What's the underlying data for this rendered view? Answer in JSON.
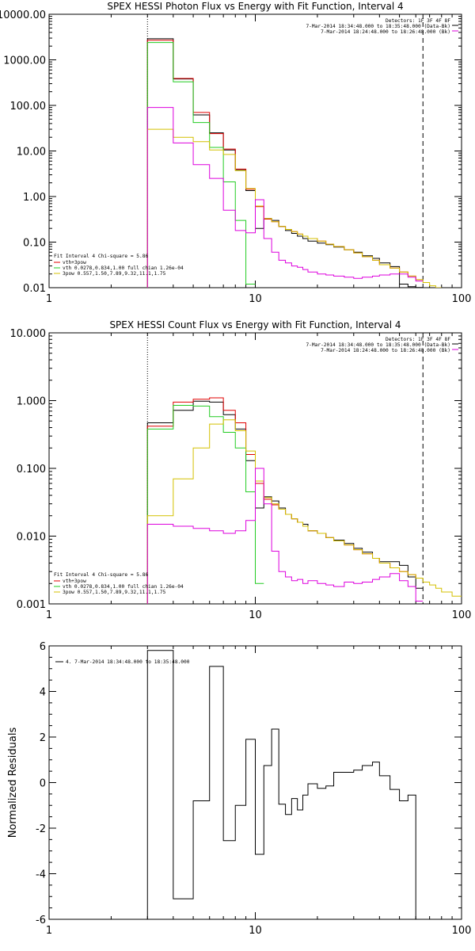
{
  "chart_data": [
    {
      "type": "line",
      "title": "SPEX HESSI Photon Flux vs Energy with Fit Function, Interval 4",
      "xscale": "log",
      "yscale": "log",
      "xlim": [
        1,
        100
      ],
      "ylim": [
        0.01,
        10000
      ],
      "xticks": [
        {
          "v": 1,
          "label": "1"
        },
        {
          "v": 10,
          "label": "10"
        },
        {
          "v": 100,
          "label": "100"
        }
      ],
      "yticks": [
        {
          "v": 0.01,
          "label": "0.01"
        },
        {
          "v": 0.1,
          "label": "0.10"
        },
        {
          "v": 1,
          "label": "1.00"
        },
        {
          "v": 10,
          "label": "10.00"
        },
        {
          "v": 100,
          "label": "100.00"
        },
        {
          "v": 1000,
          "label": "1000.00"
        },
        {
          "v": 10000,
          "label": "10000.00"
        }
      ],
      "vlines": [
        {
          "x": 3,
          "style": "dotted"
        },
        {
          "x": 65,
          "style": "dashed"
        }
      ],
      "header_lines": [
        "Detectors: 1F 3F 4F 8F",
        "7-Mar-2014 18:34:48.000 to 18:35:48.000 (Data-Bk)",
        "7-Mar-2014 18:24:48.000 to 18:26:48.000 (Bk)"
      ],
      "fit_label": "Fit Interval 4   Chi-square = 5.86",
      "legend": [
        "vth+3pow",
        "vth 0.0278,0.834,1.00  full chian 1.26e-04",
        "3pow 0.557,1.50,7.89,9.32,11.1,1.75"
      ],
      "series": [
        {
          "name": "Data-Bk",
          "color": "#000000",
          "edges": [
            3,
            4,
            5,
            6,
            7,
            8,
            9,
            10,
            11,
            12,
            13,
            14,
            15,
            16,
            17,
            18,
            20,
            22,
            24,
            27,
            30,
            33,
            37,
            40,
            45,
            50,
            55,
            60,
            65
          ],
          "values": [
            2900,
            380,
            62,
            25,
            10.5,
            3.9,
            1.35,
            0.2,
            0.33,
            0.3,
            0.22,
            0.18,
            0.155,
            0.135,
            0.12,
            0.105,
            0.095,
            0.088,
            0.078,
            0.068,
            0.06,
            0.05,
            0.044,
            0.035,
            0.029,
            0.012,
            0.0105,
            0.0101
          ]
        },
        {
          "name": "vth+3pow",
          "color": "#e00000",
          "edges": [
            3,
            4,
            5,
            6,
            7,
            8,
            9,
            10,
            11,
            12,
            13,
            14,
            15,
            16,
            17,
            18,
            20,
            22,
            24,
            27,
            30,
            33,
            37,
            40,
            45,
            50,
            55,
            60,
            65
          ],
          "values": [
            2700,
            390,
            70,
            24,
            11,
            4,
            1.45,
            0.6,
            0.32,
            0.28,
            0.22,
            0.19,
            0.17,
            0.15,
            0.135,
            0.12,
            0.105,
            0.09,
            0.08,
            0.068,
            0.058,
            0.048,
            0.04,
            0.032,
            0.027,
            0.022,
            0.018,
            0.015
          ]
        },
        {
          "name": "vth",
          "color": "#22cc22",
          "edges": [
            3,
            4,
            5,
            6,
            7,
            8,
            9,
            10
          ],
          "values": [
            2400,
            330,
            42,
            12,
            2.1,
            0.3,
            0.012
          ]
        },
        {
          "name": "3pow",
          "color": "#d4c000",
          "edges": [
            3,
            4,
            5,
            6,
            7,
            8,
            9,
            10,
            11,
            12,
            13,
            14,
            15,
            16,
            17,
            18,
            20,
            22,
            24,
            27,
            30,
            33,
            37,
            40,
            45,
            50,
            55,
            60,
            65,
            70,
            75,
            80
          ],
          "values": [
            30,
            20,
            16,
            10.5,
            8.4,
            3.7,
            1.5,
            0.62,
            0.33,
            0.28,
            0.22,
            0.19,
            0.17,
            0.15,
            0.135,
            0.12,
            0.105,
            0.09,
            0.08,
            0.068,
            0.058,
            0.048,
            0.04,
            0.032,
            0.027,
            0.022,
            0.018,
            0.015,
            0.013,
            0.011,
            0.01
          ]
        },
        {
          "name": "Bk",
          "color": "#dd00dd",
          "edges": [
            3,
            4,
            5,
            6,
            7,
            8,
            9,
            10,
            11,
            12,
            13,
            14,
            15,
            16,
            17,
            18,
            20,
            22,
            24,
            27,
            30,
            33,
            37,
            40,
            45,
            50,
            55,
            60,
            65
          ],
          "values": [
            90,
            15,
            5,
            2.5,
            0.5,
            0.18,
            0.16,
            0.85,
            0.12,
            0.06,
            0.04,
            0.035,
            0.03,
            0.028,
            0.025,
            0.022,
            0.02,
            0.019,
            0.018,
            0.017,
            0.016,
            0.017,
            0.018,
            0.019,
            0.02,
            0.02,
            0.017,
            0.014
          ]
        }
      ]
    },
    {
      "type": "line",
      "title": "SPEX HESSI Count Flux vs Energy with Fit Function, Interval 4",
      "xscale": "log",
      "yscale": "log",
      "xlim": [
        1,
        100
      ],
      "ylim": [
        0.001,
        10
      ],
      "xticks": [
        {
          "v": 1,
          "label": "1"
        },
        {
          "v": 10,
          "label": "10"
        },
        {
          "v": 100,
          "label": "100"
        }
      ],
      "yticks": [
        {
          "v": 0.001,
          "label": "0.001"
        },
        {
          "v": 0.01,
          "label": "0.010"
        },
        {
          "v": 0.1,
          "label": "0.100"
        },
        {
          "v": 1,
          "label": "1.000"
        },
        {
          "v": 10,
          "label": "10.000"
        }
      ],
      "vlines": [
        {
          "x": 3,
          "style": "dotted"
        },
        {
          "x": 65,
          "style": "dashed"
        }
      ],
      "header_lines": [
        "Detectors: 1F 3F 4F 8F",
        "7-Mar-2014 18:34:48.000 to 18:35:48.000 (Data-Bk)",
        "7-Mar-2014 18:24:48.000 to 18:26:48.000 (Bk)"
      ],
      "fit_label": "Fit Interval 4   Chi-square = 5.86",
      "legend": [
        "vth+3pow",
        "vth 0.0278,0.834,1.00  full chian 1.26e-04",
        "3pow 0.557,1.50,7.89,9.32,11.1,1.75"
      ],
      "series": [
        {
          "name": "Data-Bk",
          "color": "#000000",
          "edges": [
            3,
            4,
            5,
            6,
            7,
            8,
            9,
            10,
            11,
            12,
            13,
            14,
            15,
            16,
            17,
            18,
            20,
            22,
            24,
            27,
            30,
            33,
            37,
            40,
            45,
            50,
            55,
            60,
            65
          ],
          "values": [
            0.47,
            0.72,
            0.98,
            0.95,
            0.62,
            0.38,
            0.13,
            0.026,
            0.038,
            0.033,
            0.026,
            0.021,
            0.018,
            0.016,
            0.015,
            0.012,
            0.011,
            0.0095,
            0.0087,
            0.0078,
            0.0066,
            0.0058,
            0.0047,
            0.0042,
            0.0042,
            0.0037,
            0.0025,
            0.0017
          ]
        },
        {
          "name": "vth+3pow",
          "color": "#e00000",
          "edges": [
            3,
            4,
            5,
            6,
            7,
            8,
            9,
            10,
            11,
            12,
            13,
            14,
            15,
            16,
            17,
            18,
            20,
            22,
            24,
            27,
            30,
            33,
            37,
            40,
            45,
            50,
            55,
            60,
            65
          ],
          "values": [
            0.42,
            0.95,
            1.05,
            1.1,
            0.72,
            0.47,
            0.16,
            0.06,
            0.035,
            0.029,
            0.025,
            0.021,
            0.018,
            0.016,
            0.014,
            0.012,
            0.011,
            0.0095,
            0.0085,
            0.0074,
            0.0063,
            0.0055,
            0.0047,
            0.004,
            0.0034,
            0.003,
            0.0027,
            0.0024
          ]
        },
        {
          "name": "vth",
          "color": "#22cc22",
          "edges": [
            3,
            4,
            5,
            6,
            7,
            8,
            9,
            10,
            11
          ],
          "values": [
            0.38,
            0.85,
            0.83,
            0.58,
            0.34,
            0.2,
            0.045,
            0.002
          ]
        },
        {
          "name": "3pow",
          "color": "#d4c000",
          "edges": [
            3,
            4,
            5,
            6,
            7,
            8,
            9,
            10,
            11,
            12,
            13,
            14,
            15,
            16,
            17,
            18,
            20,
            22,
            24,
            27,
            30,
            33,
            37,
            40,
            45,
            50,
            55,
            60,
            65,
            70,
            75,
            80,
            90,
            100
          ],
          "values": [
            0.02,
            0.07,
            0.2,
            0.45,
            0.52,
            0.36,
            0.18,
            0.065,
            0.037,
            0.03,
            0.025,
            0.021,
            0.018,
            0.016,
            0.014,
            0.012,
            0.011,
            0.0095,
            0.0085,
            0.0074,
            0.0063,
            0.0055,
            0.0047,
            0.004,
            0.0034,
            0.003,
            0.0027,
            0.0024,
            0.0021,
            0.0019,
            0.0017,
            0.0015,
            0.0013
          ]
        },
        {
          "name": "Bk",
          "color": "#dd00dd",
          "edges": [
            3,
            4,
            5,
            6,
            7,
            8,
            9,
            10,
            11,
            12,
            13,
            14,
            15,
            16,
            17,
            18,
            20,
            22,
            24,
            27,
            30,
            33,
            37,
            40,
            45,
            50,
            55,
            60,
            65
          ],
          "values": [
            0.015,
            0.014,
            0.013,
            0.012,
            0.011,
            0.012,
            0.017,
            0.1,
            0.03,
            0.006,
            0.003,
            0.0025,
            0.0022,
            0.0023,
            0.002,
            0.0022,
            0.002,
            0.0019,
            0.0018,
            0.0021,
            0.002,
            0.0021,
            0.0023,
            0.0025,
            0.0028,
            0.0022,
            0.0018,
            0.0011
          ]
        }
      ]
    },
    {
      "type": "line",
      "title": "",
      "xscale": "log",
      "yscale": "linear",
      "xlim": [
        1,
        100
      ],
      "ylim": [
        -6,
        6
      ],
      "ylabel": "Normalized Residuals",
      "xticks": [
        {
          "v": 1,
          "label": "1"
        },
        {
          "v": 10,
          "label": "10"
        },
        {
          "v": 100,
          "label": "100"
        }
      ],
      "yticks": [
        {
          "v": -6,
          "label": "-6"
        },
        {
          "v": -4,
          "label": "-4"
        },
        {
          "v": -2,
          "label": "-2"
        },
        {
          "v": 0,
          "label": "0"
        },
        {
          "v": 2,
          "label": "2"
        },
        {
          "v": 4,
          "label": "4"
        },
        {
          "v": 6,
          "label": "6"
        }
      ],
      "legend": [
        "4.  7-Mar-2014 18:34:48.000 to 18:35:48.000"
      ],
      "series": [
        {
          "name": "residuals",
          "color": "#000000",
          "edges": [
            3,
            4,
            5,
            6,
            7,
            8,
            9,
            10,
            11,
            12,
            13,
            14,
            15,
            16,
            17,
            18,
            20,
            22,
            24,
            27,
            30,
            33,
            37,
            40,
            45,
            50,
            55,
            60,
            65
          ],
          "values": [
            5.8,
            -5.1,
            -0.8,
            5.1,
            -2.55,
            -1.0,
            1.9,
            -3.15,
            0.75,
            2.35,
            -0.95,
            -1.4,
            -0.7,
            -1.2,
            -0.55,
            -0.05,
            -0.25,
            -0.15,
            0.45,
            0.45,
            0.55,
            0.75,
            0.9,
            0.3,
            -0.3,
            -0.8,
            -0.55,
            -6.0
          ]
        }
      ]
    }
  ]
}
